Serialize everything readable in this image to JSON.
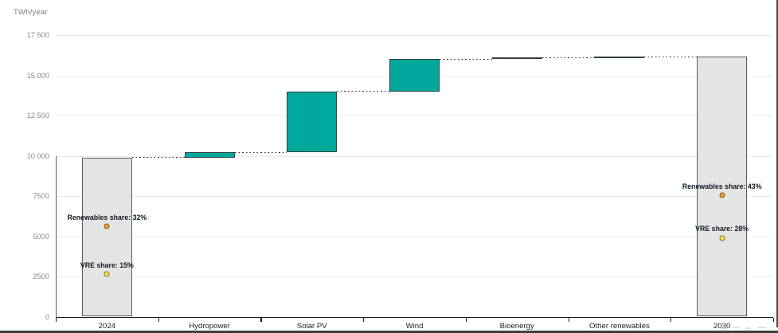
{
  "unit_label": "TWh/year",
  "chart_data": {
    "type": "bar",
    "subtype": "waterfall",
    "title": "",
    "xlabel": "",
    "ylabel": "TWh/year",
    "ylim": [
      0,
      17500
    ],
    "ytick_interval": 2500,
    "ytick_labels": [
      "0",
      "2500",
      "5000",
      "7500",
      "10 000",
      "12 500",
      "15 000",
      "17 500"
    ],
    "grid": true,
    "connector_style": "dotted",
    "categories": [
      "2024",
      "Hydropower",
      "Solar PV",
      "Wind",
      "Bioenergy",
      "Other renewables",
      "2030"
    ],
    "bars": [
      {
        "label": "2024",
        "start": 0,
        "end": 9900,
        "role": "total",
        "fill": "#e4e4e5",
        "border": "#57595c"
      },
      {
        "label": "Hydropower",
        "start": 9900,
        "end": 10200,
        "role": "increment",
        "fill": "#00a79b",
        "border": "#31423f"
      },
      {
        "label": "Solar PV",
        "start": 10200,
        "end": 14000,
        "role": "increment",
        "fill": "#00a79b",
        "border": "#31423f"
      },
      {
        "label": "Wind",
        "start": 14000,
        "end": 16000,
        "role": "increment",
        "fill": "#00a79b",
        "border": "#31423f"
      },
      {
        "label": "Bioenergy",
        "start": 16000,
        "end": 16100,
        "role": "increment",
        "fill": "#00a79b",
        "border": "#31423f"
      },
      {
        "label": "Other renewables",
        "start": 16100,
        "end": 16150,
        "role": "increment",
        "fill": "#3f5955",
        "border": "#31423f"
      },
      {
        "label": "2030",
        "start": 0,
        "end": 16150,
        "role": "total",
        "fill": "#e4e4e5",
        "border": "#57595c"
      }
    ],
    "annotations": [
      {
        "bar": "2024",
        "label": "Renewables share: 32%",
        "value_pct": 32,
        "dot_fill": "#f2a33a",
        "dot_border": "#7c5310"
      },
      {
        "bar": "2024",
        "label": "VRE share: 15%",
        "value_pct": 15,
        "dot_fill": "#f6e94e",
        "dot_border": "#7c7210"
      },
      {
        "bar": "2030",
        "label": "Renewables share: 43%",
        "value_pct": 43,
        "dot_fill": "#f2a33a",
        "dot_border": "#7c5310"
      },
      {
        "bar": "2030",
        "label": "VRE share: 28%",
        "value_pct": 28,
        "dot_fill": "#f6e94e",
        "dot_border": "#7c7210"
      }
    ],
    "annotation_pct_axis": {
      "min": 0,
      "max": 100
    }
  },
  "edge_chrome": {
    "right_strip_color": "#4b4b4b",
    "bottom_band_color": "#3f3f3f"
  }
}
